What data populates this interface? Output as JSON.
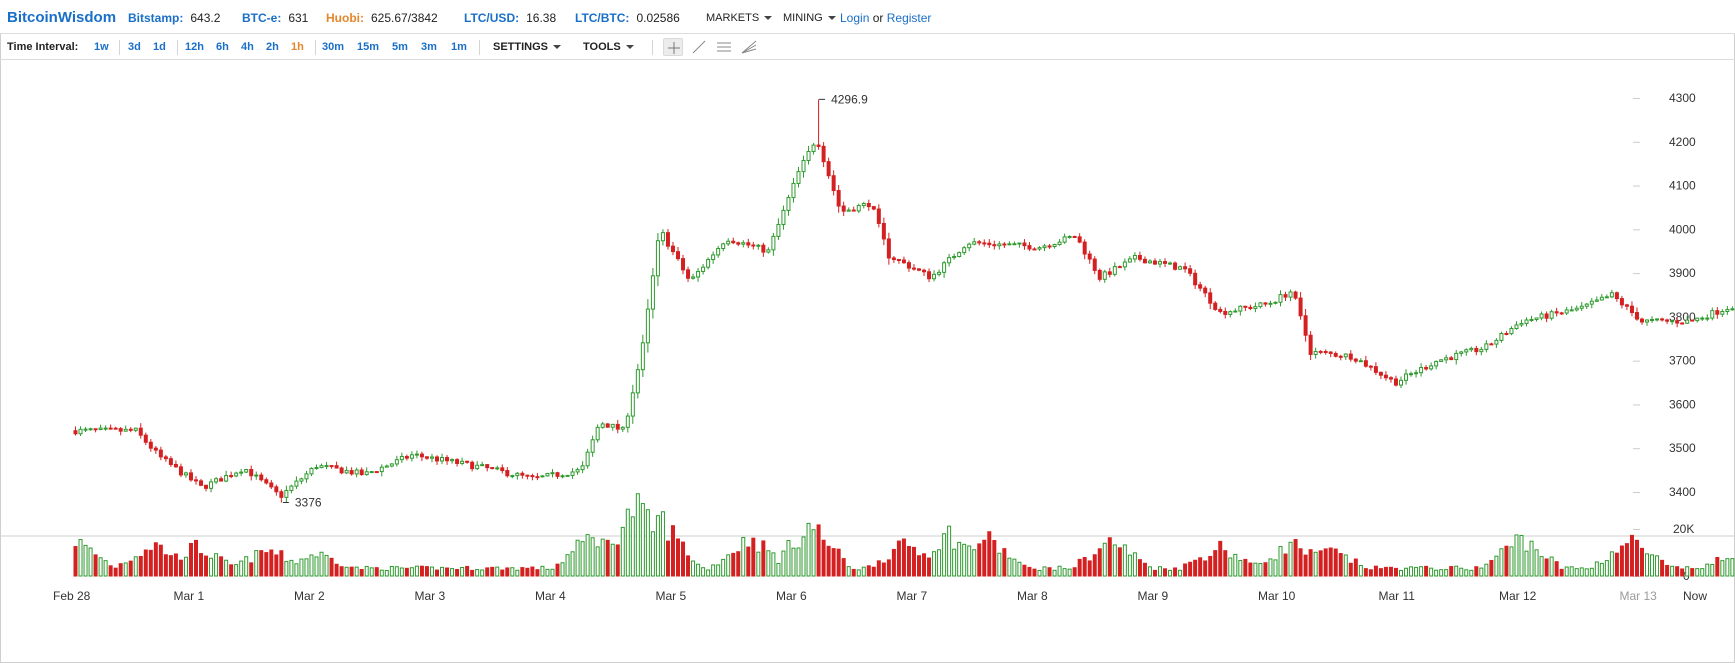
{
  "brand": "BitcoinWisdom",
  "ticker": [
    {
      "label": "Bitstamp:",
      "value": "643.2",
      "color": "#1a6fc8"
    },
    {
      "label": "BTC-e:",
      "value": "631",
      "color": "#1a6fc8"
    },
    {
      "label": "Huobi:",
      "value": "625.67/3842",
      "color": "#e5862a"
    },
    {
      "label": "LTC/USD:",
      "value": "16.38",
      "color": "#1a6fc8"
    },
    {
      "label": "LTC/BTC:",
      "value": "0.02586",
      "color": "#1a6fc8"
    }
  ],
  "menus": {
    "markets": "MARKETS",
    "mining": "MINING"
  },
  "auth": {
    "login": "Login",
    "or": "or",
    "register": "Register"
  },
  "toolbar": {
    "time_interval_label": "Time Interval:",
    "intervals": [
      "1w",
      "3d",
      "1d",
      "12h",
      "6h",
      "4h",
      "2h",
      "1h",
      "30m",
      "15m",
      "5m",
      "3m",
      "1m"
    ],
    "active_interval": "1h",
    "settings": "SETTINGS",
    "tools": "TOOLS",
    "drawing_tools": [
      "crosshair-tool-icon",
      "line-tool-icon",
      "horizontal-lines-tool-icon",
      "fan-tool-icon"
    ]
  },
  "colors": {
    "up": "#2e9a2e",
    "down": "#d42020",
    "link": "#1a6fc8",
    "active": "#e5862a"
  },
  "chart_data": {
    "type": "candlestick",
    "interval": "1h",
    "price_axis_ticks": [
      3400,
      3500,
      3600,
      3700,
      3800,
      3900,
      4000,
      4100,
      4200,
      4300
    ],
    "volume_axis_ticks": [
      "0",
      "20K"
    ],
    "x_tick_labels": [
      "Feb 28",
      "Mar 1",
      "Mar 2",
      "Mar 3",
      "Mar 4",
      "Mar 5",
      "Mar 6",
      "Mar 7",
      "Mar 8",
      "Mar 9",
      "Mar 10",
      "Mar 11",
      "Mar 12",
      "Mar 13",
      "Now"
    ],
    "annotations": {
      "high": "4296.9",
      "low": "3376"
    },
    "price_anchors": [
      {
        "day": 0.0,
        "close": 3540
      },
      {
        "day": 0.5,
        "close": 3540
      },
      {
        "day": 0.7,
        "close": 3480
      },
      {
        "day": 1.05,
        "close": 3410
      },
      {
        "day": 1.4,
        "close": 3455
      },
      {
        "day": 1.7,
        "close": 3390
      },
      {
        "day": 2.0,
        "close": 3460
      },
      {
        "day": 2.4,
        "close": 3440
      },
      {
        "day": 2.8,
        "close": 3485
      },
      {
        "day": 3.4,
        "close": 3455
      },
      {
        "day": 3.8,
        "close": 3430
      },
      {
        "day": 4.2,
        "close": 3450
      },
      {
        "day": 4.35,
        "close": 3560
      },
      {
        "day": 4.55,
        "close": 3540
      },
      {
        "day": 4.7,
        "close": 3720
      },
      {
        "day": 4.85,
        "close": 4000
      },
      {
        "day": 5.1,
        "close": 3880
      },
      {
        "day": 5.4,
        "close": 3980
      },
      {
        "day": 5.75,
        "close": 3950
      },
      {
        "day": 6.0,
        "close": 4130
      },
      {
        "day": 6.15,
        "close": 4210
      },
      {
        "day": 6.35,
        "close": 4040
      },
      {
        "day": 6.6,
        "close": 4060
      },
      {
        "day": 6.75,
        "close": 3940
      },
      {
        "day": 7.1,
        "close": 3890
      },
      {
        "day": 7.4,
        "close": 3970
      },
      {
        "day": 8.0,
        "close": 3960
      },
      {
        "day": 8.3,
        "close": 3985
      },
      {
        "day": 8.5,
        "close": 3890
      },
      {
        "day": 8.8,
        "close": 3935
      },
      {
        "day": 9.2,
        "close": 3910
      },
      {
        "day": 9.5,
        "close": 3810
      },
      {
        "day": 9.9,
        "close": 3830
      },
      {
        "day": 10.1,
        "close": 3860
      },
      {
        "day": 10.25,
        "close": 3720
      },
      {
        "day": 10.6,
        "close": 3710
      },
      {
        "day": 10.95,
        "close": 3650
      },
      {
        "day": 11.3,
        "close": 3700
      },
      {
        "day": 11.7,
        "close": 3730
      },
      {
        "day": 12.0,
        "close": 3790
      },
      {
        "day": 12.5,
        "close": 3820
      },
      {
        "day": 12.75,
        "close": 3850
      },
      {
        "day": 13.0,
        "close": 3790
      },
      {
        "day": 13.4,
        "close": 3790
      },
      {
        "day": 13.8,
        "close": 3830
      },
      {
        "day": 14.2,
        "close": 3800
      },
      {
        "day": 14.6,
        "close": 3800
      },
      {
        "day": 14.9,
        "close": 3835
      }
    ],
    "volume_bursts": [
      {
        "day": 0.0,
        "level": 0.45
      },
      {
        "day": 0.65,
        "level": 0.4
      },
      {
        "day": 1.0,
        "level": 0.35
      },
      {
        "day": 1.6,
        "level": 0.3
      },
      {
        "day": 2.0,
        "level": 0.25
      },
      {
        "day": 4.3,
        "level": 0.55
      },
      {
        "day": 4.65,
        "level": 1.0
      },
      {
        "day": 4.85,
        "level": 0.8
      },
      {
        "day": 5.6,
        "level": 0.5
      },
      {
        "day": 6.1,
        "level": 0.7
      },
      {
        "day": 6.9,
        "level": 0.4
      },
      {
        "day": 7.25,
        "level": 0.55
      },
      {
        "day": 7.55,
        "level": 0.5
      },
      {
        "day": 8.6,
        "level": 0.45
      },
      {
        "day": 9.5,
        "level": 0.35
      },
      {
        "day": 10.1,
        "level": 0.4
      },
      {
        "day": 10.4,
        "level": 0.3
      },
      {
        "day": 12.0,
        "level": 0.5
      },
      {
        "day": 12.9,
        "level": 0.45
      },
      {
        "day": 13.8,
        "level": 0.25
      }
    ]
  }
}
